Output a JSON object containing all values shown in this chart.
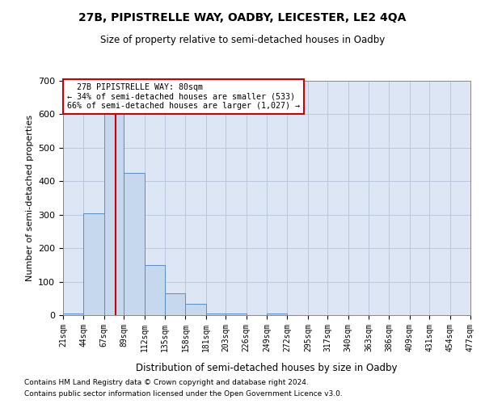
{
  "title": "27B, PIPISTRELLE WAY, OADBY, LEICESTER, LE2 4QA",
  "subtitle": "Size of property relative to semi-detached houses in Oadby",
  "xlabel": "Distribution of semi-detached houses by size in Oadby",
  "ylabel": "Number of semi-detached properties",
  "footer_line1": "Contains HM Land Registry data © Crown copyright and database right 2024.",
  "footer_line2": "Contains public sector information licensed under the Open Government Licence v3.0.",
  "annotation_line1": "27B PIPISTRELLE WAY: 80sqm",
  "annotation_line2": "← 34% of semi-detached houses are smaller (533)",
  "annotation_line3": "66% of semi-detached houses are larger (1,027) →",
  "property_size_sqm": 80,
  "bar_color": "#c5d8ed",
  "bar_edge_color": "#5b8dc8",
  "red_line_color": "#cc0000",
  "background_color": "#ffffff",
  "plot_bg_color": "#dce6f5",
  "grid_color": "#b8c8dc",
  "bin_edges": [
    21,
    44,
    67,
    89,
    112,
    135,
    158,
    181,
    203,
    226,
    249,
    272,
    295,
    317,
    340,
    363,
    386,
    409,
    431,
    454,
    477
  ],
  "bin_values": [
    5,
    303,
    621,
    425,
    150,
    65,
    35,
    5,
    5,
    0,
    5,
    0,
    0,
    0,
    0,
    0,
    0,
    0,
    0,
    0
  ],
  "ylim": [
    0,
    700
  ],
  "yticks": [
    0,
    100,
    200,
    300,
    400,
    500,
    600,
    700
  ],
  "annotation_box_color": "#ffffff",
  "annotation_box_edge": "#cc0000",
  "fig_width": 6.0,
  "fig_height": 5.0,
  "dpi": 100
}
